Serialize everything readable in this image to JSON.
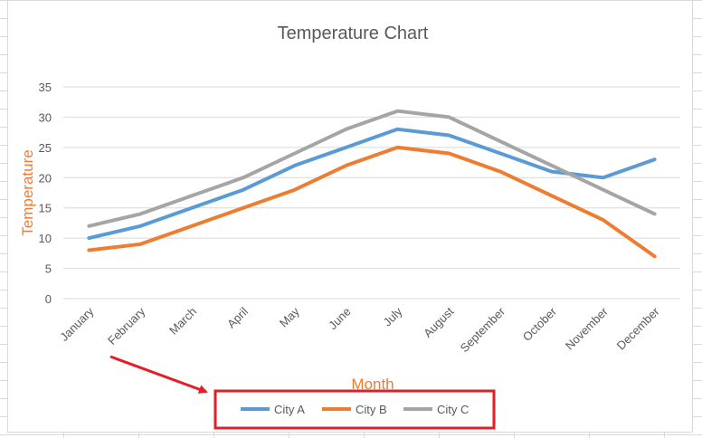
{
  "chart_data": {
    "type": "line",
    "title": "Temperature Chart",
    "xlabel": "Month",
    "ylabel": "Temperature",
    "categories": [
      "January",
      "February",
      "March",
      "April",
      "May",
      "June",
      "July",
      "August",
      "September",
      "October",
      "November",
      "December"
    ],
    "ylim": [
      0,
      35
    ],
    "yticks": [
      0,
      5,
      10,
      15,
      20,
      25,
      30,
      35
    ],
    "grid": true,
    "legend_position": "bottom",
    "series": [
      {
        "name": "City A",
        "color": "#5b9bd5",
        "values": [
          10,
          12,
          15,
          18,
          22,
          25,
          28,
          27,
          24,
          21,
          20,
          23
        ]
      },
      {
        "name": "City B",
        "color": "#ed7d31",
        "values": [
          8,
          9,
          12,
          15,
          18,
          22,
          25,
          24,
          21,
          17,
          13,
          7
        ]
      },
      {
        "name": "City C",
        "color": "#a5a5a5",
        "values": [
          12,
          14,
          17,
          20,
          24,
          28,
          31,
          30,
          26,
          22,
          18,
          14
        ]
      }
    ]
  },
  "annotation": {
    "color": "#e41e26"
  }
}
